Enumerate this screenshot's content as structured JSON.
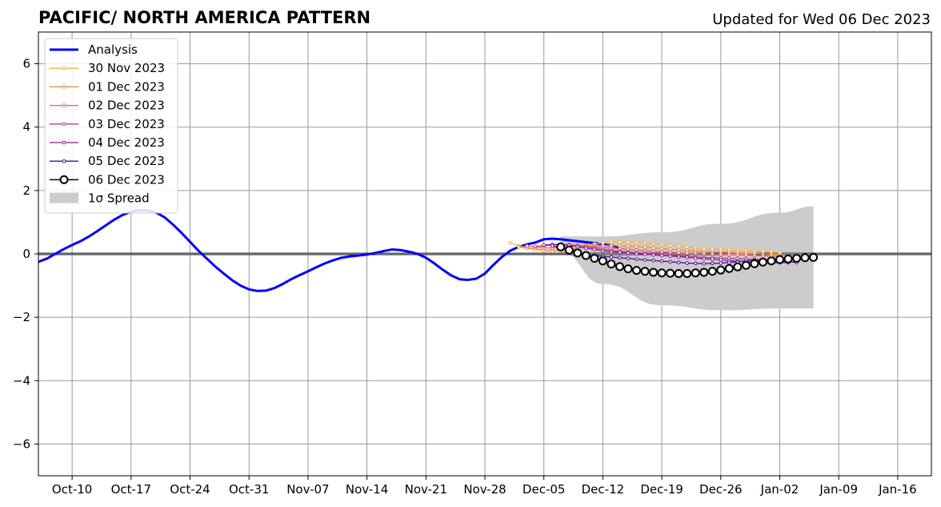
{
  "chart_data": {
    "type": "line",
    "title": "PACIFIC/ NORTH AMERICA PATTERN",
    "subtitle": "Updated for Wed 06 Dec 2023",
    "xlabel": "",
    "ylabel": "",
    "x_range": [
      "2023-10-06",
      "2024-01-20"
    ],
    "ylim": [
      -7,
      7
    ],
    "yticks": [
      -6,
      -4,
      -2,
      0,
      2,
      4,
      6
    ],
    "xticks": [
      {
        "date": "2023-10-10",
        "label": "Oct-10"
      },
      {
        "date": "2023-10-17",
        "label": "Oct-17"
      },
      {
        "date": "2023-10-24",
        "label": "Oct-24"
      },
      {
        "date": "2023-10-31",
        "label": "Oct-31"
      },
      {
        "date": "2023-11-07",
        "label": "Nov-07"
      },
      {
        "date": "2023-11-14",
        "label": "Nov-14"
      },
      {
        "date": "2023-11-21",
        "label": "Nov-21"
      },
      {
        "date": "2023-11-28",
        "label": "Nov-28"
      },
      {
        "date": "2023-12-05",
        "label": "Dec-05"
      },
      {
        "date": "2023-12-12",
        "label": "Dec-12"
      },
      {
        "date": "2023-12-19",
        "label": "Dec-19"
      },
      {
        "date": "2023-12-26",
        "label": "Dec-26"
      },
      {
        "date": "2024-01-02",
        "label": "Jan-02"
      },
      {
        "date": "2024-01-09",
        "label": "Jan-09"
      },
      {
        "date": "2024-01-16",
        "label": "Jan-16"
      }
    ],
    "grid": true,
    "legend_position": "top-left",
    "analysis": {
      "name": "Analysis",
      "color": "#0000ff",
      "start_date": "2023-10-06",
      "values": [
        -0.25,
        -0.15,
        0.0,
        0.15,
        0.28,
        0.4,
        0.55,
        0.72,
        0.9,
        1.08,
        1.23,
        1.33,
        1.38,
        1.37,
        1.3,
        1.15,
        0.92,
        0.66,
        0.38,
        0.1,
        -0.15,
        -0.4,
        -0.62,
        -0.83,
        -1.0,
        -1.12,
        -1.17,
        -1.16,
        -1.08,
        -0.95,
        -0.8,
        -0.67,
        -0.55,
        -0.42,
        -0.3,
        -0.2,
        -0.12,
        -0.08,
        -0.05,
        -0.02,
        0.03,
        0.09,
        0.14,
        0.12,
        0.07,
        0.0,
        -0.12,
        -0.3,
        -0.5,
        -0.68,
        -0.8,
        -0.82,
        -0.78,
        -0.62,
        -0.35,
        -0.1,
        0.1,
        0.22,
        0.3,
        0.36,
        0.46,
        0.48,
        0.46,
        0.43,
        0.4,
        0.37,
        0.34,
        0.3,
        0.26,
        0.21
      ]
    },
    "spread": {
      "name": "1σ Spread",
      "color": "#cccccc",
      "x": [
        "2023-12-07",
        "2023-12-12",
        "2023-12-19",
        "2023-12-26",
        "2024-01-02",
        "2024-01-06"
      ],
      "upper": [
        0.55,
        0.55,
        0.68,
        0.95,
        1.3,
        1.5
      ],
      "lower": [
        0.05,
        -0.95,
        -1.62,
        -1.78,
        -1.72,
        -1.72
      ]
    },
    "series": [
      {
        "name": "30 Nov 2023",
        "color": "#f5b342",
        "start_date": "2023-12-01",
        "values": [
          0.35,
          0.26,
          0.2,
          0.16,
          0.14,
          0.13,
          0.13,
          0.15,
          0.2,
          0.26,
          0.31,
          0.35,
          0.38,
          0.38,
          0.37,
          0.36,
          0.34,
          0.32,
          0.3,
          0.27,
          0.24,
          0.21,
          0.19,
          0.17,
          0.15,
          0.14,
          0.12,
          0.11,
          0.1,
          0.09,
          0.08,
          0.06,
          0.04
        ]
      },
      {
        "name": "01 Dec 2023",
        "color": "#ec8a45",
        "start_date": "2023-12-02",
        "values": [
          0.22,
          0.18,
          0.14,
          0.11,
          0.08,
          0.1,
          0.13,
          0.18,
          0.22,
          0.25,
          0.26,
          0.26,
          0.25,
          0.24,
          0.23,
          0.21,
          0.19,
          0.17,
          0.15,
          0.13,
          0.11,
          0.09,
          0.08,
          0.07,
          0.06,
          0.05,
          0.04,
          0.03,
          0.02,
          0.0,
          -0.02,
          -0.04
        ]
      },
      {
        "name": "02 Dec 2023",
        "color": "#e35d6a",
        "start_date": "2023-12-03",
        "values": [
          0.25,
          0.22,
          0.2,
          0.18,
          0.2,
          0.24,
          0.26,
          0.25,
          0.22,
          0.2,
          0.18,
          0.16,
          0.14,
          0.12,
          0.1,
          0.08,
          0.06,
          0.05,
          0.04,
          0.03,
          0.02,
          0.01,
          0.0,
          -0.01,
          -0.02,
          -0.03,
          -0.04,
          -0.05,
          -0.06,
          -0.07,
          -0.08
        ]
      },
      {
        "name": "03 Dec 2023",
        "color": "#bb3d8b",
        "start_date": "2023-12-04",
        "values": [
          0.24,
          0.26,
          0.28,
          0.29,
          0.29,
          0.26,
          0.22,
          0.18,
          0.14,
          0.11,
          0.08,
          0.06,
          0.04,
          0.02,
          0.0,
          -0.02,
          -0.04,
          -0.06,
          -0.08,
          -0.1,
          -0.11,
          -0.12,
          -0.13,
          -0.14,
          -0.15,
          -0.16,
          -0.17,
          -0.18,
          -0.19,
          -0.2
        ]
      },
      {
        "name": "04 Dec 2023",
        "color": "#8a1f9e",
        "start_date": "2023-12-05",
        "values": [
          0.28,
          0.3,
          0.3,
          0.27,
          0.23,
          0.18,
          0.14,
          0.1,
          0.07,
          0.05,
          0.03,
          0.01,
          -0.01,
          -0.03,
          -0.05,
          -0.07,
          -0.09,
          -0.11,
          -0.13,
          -0.15,
          -0.17,
          -0.19,
          -0.21,
          -0.23,
          -0.25,
          -0.26,
          -0.27,
          -0.28,
          -0.28,
          -0.28
        ]
      },
      {
        "name": "05 Dec 2023",
        "color": "#4b0c97",
        "start_date": "2023-12-06",
        "values": [
          0.25,
          0.2,
          0.14,
          0.06,
          0.0,
          -0.05,
          -0.08,
          -0.1,
          -0.12,
          -0.14,
          -0.17,
          -0.19,
          -0.21,
          -0.23,
          -0.25,
          -0.27,
          -0.29,
          -0.3,
          -0.31,
          -0.3,
          -0.29,
          -0.27,
          -0.25,
          -0.22,
          -0.2,
          -0.2,
          -0.21,
          -0.23,
          -0.25,
          -0.27
        ]
      },
      {
        "name": "06 Dec 2023",
        "color": "#000000",
        "start_date": "2023-12-07",
        "values": [
          0.22,
          0.12,
          0.03,
          -0.05,
          -0.14,
          -0.22,
          -0.32,
          -0.4,
          -0.47,
          -0.52,
          -0.55,
          -0.58,
          -0.6,
          -0.61,
          -0.62,
          -0.62,
          -0.6,
          -0.58,
          -0.55,
          -0.51,
          -0.46,
          -0.41,
          -0.36,
          -0.31,
          -0.26,
          -0.22,
          -0.18,
          -0.16,
          -0.14,
          -0.12,
          -0.11
        ]
      }
    ]
  }
}
